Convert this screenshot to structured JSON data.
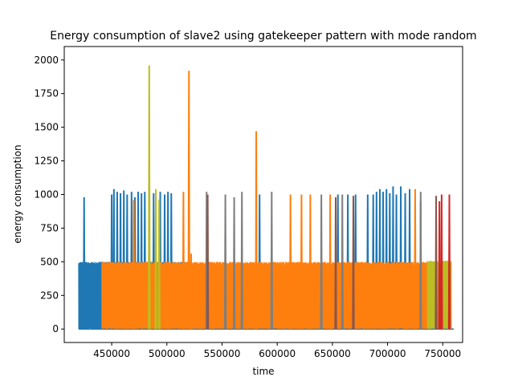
{
  "chart_data": {
    "type": "line",
    "title": "Energy consumption of slave2 using gatekeeper pattern with mode random",
    "xlabel": "time",
    "ylabel": "energy consumption",
    "xlim": [
      407000,
      768000
    ],
    "ylim": [
      -100,
      2100
    ],
    "xticks": [
      450000,
      500000,
      550000,
      600000,
      650000,
      700000,
      750000
    ],
    "yticks": [
      0,
      250,
      500,
      750,
      1000,
      1250,
      1500,
      1750,
      2000
    ],
    "grid": false,
    "series": [
      {
        "color": "#1f77b4",
        "dense_segments": [
          {
            "x_start": 420000,
            "x_end": 442000,
            "low": 0,
            "high": 500
          },
          {
            "x_start": 442000,
            "x_end": 520000,
            "low": 0,
            "high": 500
          },
          {
            "x_start": 700000,
            "x_end": 722000,
            "low": 0,
            "high": 500
          }
        ],
        "spikes": [
          {
            "x": 425000,
            "y": 980
          },
          {
            "x": 450000,
            "y": 1000
          },
          {
            "x": 452000,
            "y": 1040
          },
          {
            "x": 455000,
            "y": 1020
          },
          {
            "x": 458000,
            "y": 1010
          },
          {
            "x": 461000,
            "y": 1030
          },
          {
            "x": 464000,
            "y": 1000
          },
          {
            "x": 468000,
            "y": 1020
          },
          {
            "x": 471000,
            "y": 980
          },
          {
            "x": 474000,
            "y": 1020
          },
          {
            "x": 477000,
            "y": 1010
          },
          {
            "x": 480000,
            "y": 1020
          },
          {
            "x": 484000,
            "y": 1000
          },
          {
            "x": 488000,
            "y": 1010
          },
          {
            "x": 494000,
            "y": 1020
          },
          {
            "x": 498000,
            "y": 1000
          },
          {
            "x": 501000,
            "y": 1020
          },
          {
            "x": 504000,
            "y": 1010
          },
          {
            "x": 584000,
            "y": 1000
          },
          {
            "x": 655000,
            "y": 1000
          },
          {
            "x": 664000,
            "y": 1000
          },
          {
            "x": 671000,
            "y": 1000
          },
          {
            "x": 682000,
            "y": 1000
          },
          {
            "x": 687000,
            "y": 1000
          },
          {
            "x": 690000,
            "y": 1020
          },
          {
            "x": 693000,
            "y": 1040
          },
          {
            "x": 696000,
            "y": 1020
          },
          {
            "x": 699000,
            "y": 1040
          },
          {
            "x": 702000,
            "y": 1010
          },
          {
            "x": 705000,
            "y": 1060
          },
          {
            "x": 708000,
            "y": 1000
          },
          {
            "x": 712000,
            "y": 1060
          },
          {
            "x": 716000,
            "y": 1010
          },
          {
            "x": 720000,
            "y": 1040
          },
          {
            "x": 730000,
            "y": 950
          }
        ]
      },
      {
        "color": "#ff7f0e",
        "dense_segments": [
          {
            "x_start": 441000,
            "x_end": 737000,
            "low": 0,
            "high": 500
          }
        ],
        "spikes": [
          {
            "x": 470000,
            "y": 960
          },
          {
            "x": 520000,
            "y": 1920
          },
          {
            "x": 522000,
            "y": 560
          },
          {
            "x": 515000,
            "y": 1020
          },
          {
            "x": 581000,
            "y": 1470
          },
          {
            "x": 612000,
            "y": 1000
          },
          {
            "x": 622000,
            "y": 1000
          },
          {
            "x": 630000,
            "y": 1000
          },
          {
            "x": 648000,
            "y": 1000
          },
          {
            "x": 725000,
            "y": 1040
          }
        ]
      },
      {
        "color": "#bcbd22",
        "dense_segments": [
          {
            "x_start": 736000,
            "x_end": 758000,
            "low": 0,
            "high": 510
          }
        ],
        "spikes": [
          {
            "x": 484000,
            "y": 1960
          },
          {
            "x": 490000,
            "y": 1040
          },
          {
            "x": 493000,
            "y": 960
          }
        ]
      },
      {
        "color": "#7f7f7f",
        "dense_segments": [],
        "spikes": [
          {
            "x": 536000,
            "y": 1020
          },
          {
            "x": 553000,
            "y": 1000
          },
          {
            "x": 561000,
            "y": 980
          },
          {
            "x": 568000,
            "y": 1020
          },
          {
            "x": 595000,
            "y": 1020
          },
          {
            "x": 640000,
            "y": 1000
          },
          {
            "x": 659000,
            "y": 1000
          },
          {
            "x": 730000,
            "y": 1020
          }
        ]
      },
      {
        "color": "#8c564b",
        "dense_segments": [],
        "spikes": [
          {
            "x": 537000,
            "y": 1000
          },
          {
            "x": 653000,
            "y": 980
          },
          {
            "x": 669000,
            "y": 990
          },
          {
            "x": 744000,
            "y": 990
          }
        ]
      },
      {
        "color": "#d62728",
        "dense_segments": [],
        "spikes": [
          {
            "x": 747000,
            "y": 950
          },
          {
            "x": 749000,
            "y": 1000
          },
          {
            "x": 756000,
            "y": 1000
          }
        ]
      }
    ]
  }
}
